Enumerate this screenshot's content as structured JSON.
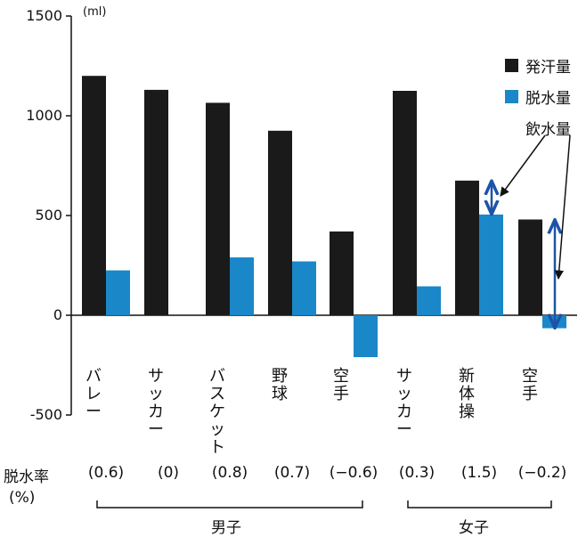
{
  "chart_data": {
    "type": "bar",
    "unit_label": "(ml)",
    "ylim": [
      -500,
      1500
    ],
    "yticks": [
      1500,
      1000,
      500,
      0,
      -500
    ],
    "grid": false,
    "legend_position": "top-right",
    "categories": [
      "バレー",
      "サッカー",
      "バスケット",
      "野球",
      "空手",
      "サッカー",
      "新体操",
      "空手"
    ],
    "series": [
      {
        "name": "発汗量",
        "color": "#1a1a1a",
        "values": [
          1200,
          1130,
          1065,
          925,
          420,
          1125,
          675,
          480
        ]
      },
      {
        "name": "脱水量",
        "color": "#1a87c8",
        "values": [
          225,
          0,
          290,
          270,
          -210,
          145,
          505,
          -65
        ]
      }
    ],
    "intake_label": "飲水量",
    "intake_color": "#1b53a8",
    "dehydration_rate_label": "脱水率",
    "dehydration_rate_unit": "(%)",
    "dehydration_rates": [
      "(0.6)",
      "(0)",
      "(0.8)",
      "(0.7)",
      "(−0.6)",
      "(0.3)",
      "(1.5)",
      "(−0.2)"
    ],
    "groups": [
      {
        "name": "男子",
        "start": 0,
        "end": 4
      },
      {
        "name": "女子",
        "start": 5,
        "end": 7
      }
    ]
  }
}
